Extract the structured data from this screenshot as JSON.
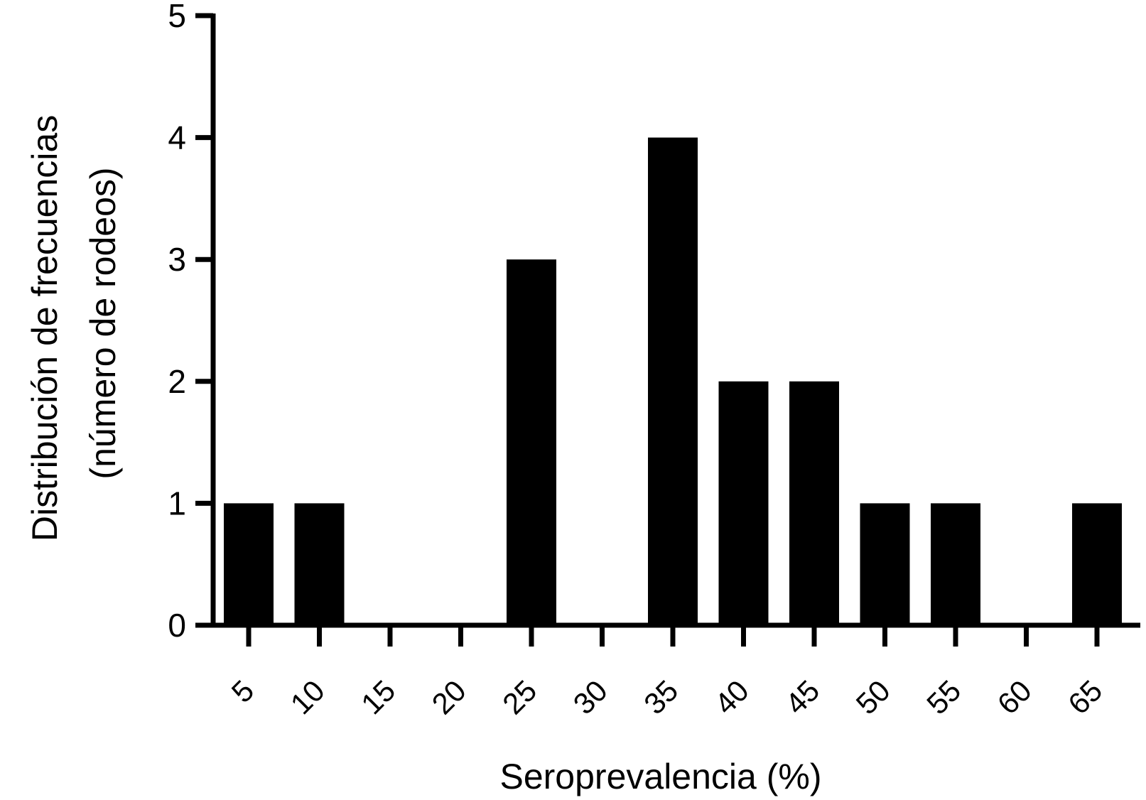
{
  "chart_data": {
    "type": "bar",
    "title": "",
    "xlabel": "Seroprevalencia (%)",
    "ylabel_lines": [
      "Distribución de frecuencias",
      "(número de rodeos)"
    ],
    "categories": [
      "5",
      "10",
      "15",
      "20",
      "25",
      "30",
      "35",
      "40",
      "45",
      "50",
      "55",
      "60",
      "65"
    ],
    "values": [
      1,
      1,
      0,
      0,
      3,
      0,
      4,
      2,
      2,
      1,
      1,
      0,
      1
    ],
    "yticks": [
      "0",
      "1",
      "2",
      "3",
      "4",
      "5"
    ],
    "ylim": [
      0,
      5
    ],
    "grid": false,
    "legend": "none",
    "bar_color": "#000000"
  }
}
